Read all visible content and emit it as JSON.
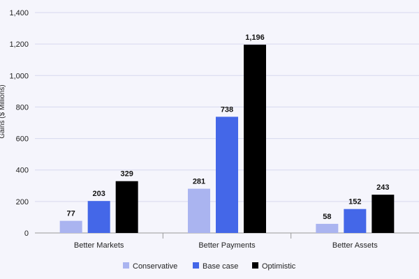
{
  "chart_data": {
    "type": "bar",
    "categories": [
      "Better Markets",
      "Better Payments",
      "Better Assets"
    ],
    "series": [
      {
        "name": "Conservative",
        "values": [
          77,
          281,
          58
        ],
        "color": "#aab4f0"
      },
      {
        "name": "Base case",
        "values": [
          203,
          738,
          152
        ],
        "color": "#4467e8"
      },
      {
        "name": "Optimistic",
        "values": [
          329,
          1196,
          243
        ],
        "color": "#000000"
      }
    ],
    "data_labels": [
      [
        "77",
        "281",
        "58"
      ],
      [
        "203",
        "738",
        "152"
      ],
      [
        "329",
        "1,196",
        "243"
      ]
    ],
    "ylabel": "Gains ($ Millions)",
    "ylim": [
      0,
      1400
    ],
    "yticks": [
      0,
      200,
      400,
      600,
      800,
      1000,
      1200,
      1400
    ],
    "ytick_labels": [
      "0",
      "200",
      "400",
      "600",
      "800",
      "1,000",
      "1,200",
      "1,400"
    ],
    "grid": true,
    "legend_position": "bottom"
  }
}
